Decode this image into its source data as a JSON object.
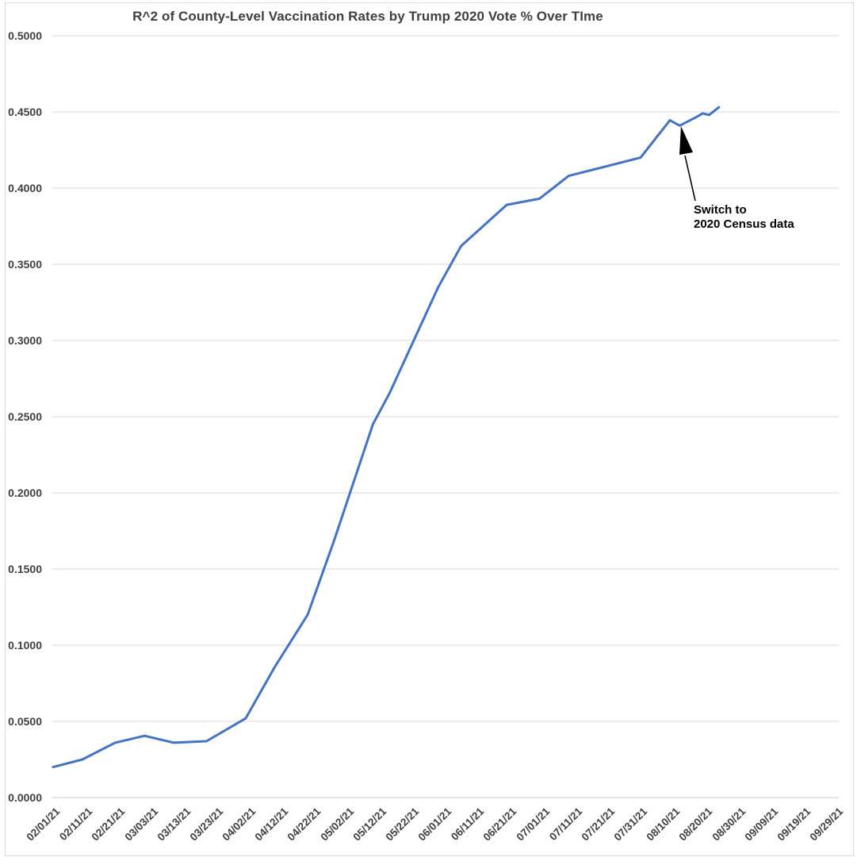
{
  "chart_data": {
    "type": "line",
    "title": "R^2 of County-Level Vaccination Rates by Trump 2020 Vote % Over TIme",
    "xlabel": "",
    "ylabel": "",
    "ylim": [
      0,
      0.5
    ],
    "y_tick_step": 0.05,
    "y_tick_labels": [
      "0.0000",
      "0.0500",
      "0.1000",
      "0.1500",
      "0.2000",
      "0.2500",
      "0.3000",
      "0.3500",
      "0.4000",
      "0.4500",
      "0.5000"
    ],
    "x_tick_labels": [
      "02/01/21",
      "02/11/21",
      "02/21/21",
      "03/03/21",
      "03/13/21",
      "03/23/21",
      "04/02/21",
      "04/12/21",
      "04/22/21",
      "05/02/21",
      "05/12/21",
      "05/22/21",
      "06/01/21",
      "06/11/21",
      "06/21/21",
      "07/01/21",
      "07/11/21",
      "07/21/21",
      "07/31/21",
      "08/10/21",
      "08/20/21",
      "08/30/21",
      "09/09/21",
      "09/19/21",
      "09/29/21"
    ],
    "x_tick_interval_days": 10,
    "x_range_days": [
      0,
      240
    ],
    "grid": "horizontal",
    "legend": "none",
    "series": [
      {
        "name": "R^2 of county-level vaccination rate vs Trump 2020 vote share",
        "points": [
          {
            "date": "02/01/21",
            "day": 0,
            "value": 0.02
          },
          {
            "date": "02/10/21",
            "day": 9,
            "value": 0.025
          },
          {
            "date": "02/20/21",
            "day": 19,
            "value": 0.036
          },
          {
            "date": "03/01/21",
            "day": 28,
            "value": 0.0405
          },
          {
            "date": "03/10/21",
            "day": 37,
            "value": 0.036
          },
          {
            "date": "03/20/21",
            "day": 47,
            "value": 0.037
          },
          {
            "date": "04/01/21",
            "day": 59,
            "value": 0.052
          },
          {
            "date": "04/10/21",
            "day": 68,
            "value": 0.086
          },
          {
            "date": "04/20/21",
            "day": 78,
            "value": 0.12
          },
          {
            "date": "04/28/21",
            "day": 86,
            "value": 0.168
          },
          {
            "date": "05/10/21",
            "day": 98,
            "value": 0.245
          },
          {
            "date": "05/15/21",
            "day": 103,
            "value": 0.265
          },
          {
            "date": "05/30/21",
            "day": 118,
            "value": 0.335
          },
          {
            "date": "06/06/21",
            "day": 125,
            "value": 0.362
          },
          {
            "date": "06/20/21",
            "day": 139,
            "value": 0.389
          },
          {
            "date": "06/30/21",
            "day": 149,
            "value": 0.393
          },
          {
            "date": "07/09/21",
            "day": 158,
            "value": 0.408
          },
          {
            "date": "07/31/21",
            "day": 180,
            "value": 0.42
          },
          {
            "date": "08/09/21",
            "day": 189,
            "value": 0.4445
          },
          {
            "date": "08/12/21",
            "day": 192,
            "value": 0.441
          },
          {
            "date": "08/17/21",
            "day": 197,
            "value": 0.4465
          },
          {
            "date": "08/19/21",
            "day": 199,
            "value": 0.449
          },
          {
            "date": "08/21/21",
            "day": 201,
            "value": 0.448
          },
          {
            "date": "08/24/21",
            "day": 204,
            "value": 0.453
          }
        ]
      }
    ],
    "annotation": {
      "lines": [
        "Switch to",
        "2020 Census data"
      ],
      "arrow_target": {
        "date": "08/12/21",
        "value": 0.441
      }
    }
  },
  "colors": {
    "line": "#4472C4",
    "grid": "#D9D9D9",
    "axis": "#C9C9C9",
    "tick_text": "#404040",
    "title_text": "#3F3F3F",
    "annotation_text": "#000000",
    "arrow": "#000000",
    "border": "#D9D9D9",
    "background": "#FFFFFF"
  }
}
